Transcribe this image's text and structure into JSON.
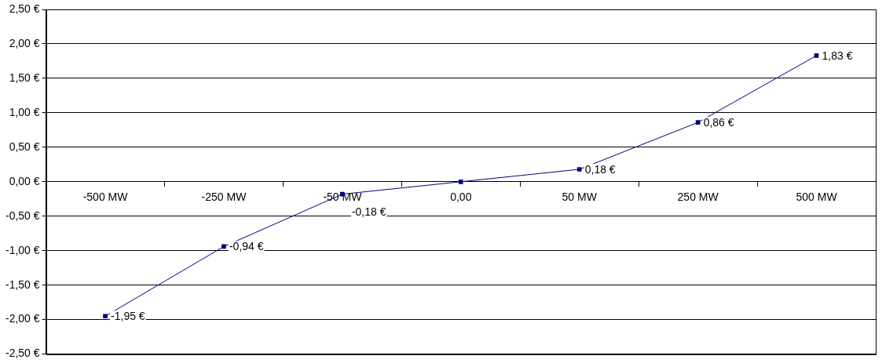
{
  "chart_data": {
    "type": "line",
    "categories": [
      "-500 MW",
      "-250 MW",
      "-50 MW",
      "0,00",
      "50 MW",
      "250 MW",
      "500 MW"
    ],
    "series": [
      {
        "color": "#000080",
        "values": [
          -1.95,
          -0.94,
          -0.18,
          0,
          0.18,
          0.86,
          1.83
        ],
        "value_labels": [
          "-1,95 €",
          "-0,94 €",
          "-0,18 €",
          null,
          "0,18 €",
          "0,86 €",
          "1,83 €"
        ]
      }
    ],
    "ylim": [
      -2.5,
      2.5
    ],
    "yticks": [
      {
        "value": -2.5,
        "label": "-2,50 €"
      },
      {
        "value": -2,
        "label": "-2,00 €"
      },
      {
        "value": -1.5,
        "label": "-1,50 €"
      },
      {
        "value": -1,
        "label": "-1,00 €"
      },
      {
        "value": -0.5,
        "label": "-0,50 €"
      },
      {
        "value": 0,
        "label": "0,00 €"
      },
      {
        "value": 0.5,
        "label": "0,50 €"
      },
      {
        "value": 1,
        "label": "1,00 €"
      },
      {
        "value": 1.5,
        "label": "1,50 €"
      },
      {
        "value": 2,
        "label": "2,00 €"
      },
      {
        "value": 2.5,
        "label": "2,50 €"
      }
    ],
    "grid": "y",
    "legend": false,
    "marker": "square",
    "line_style": "solid"
  }
}
